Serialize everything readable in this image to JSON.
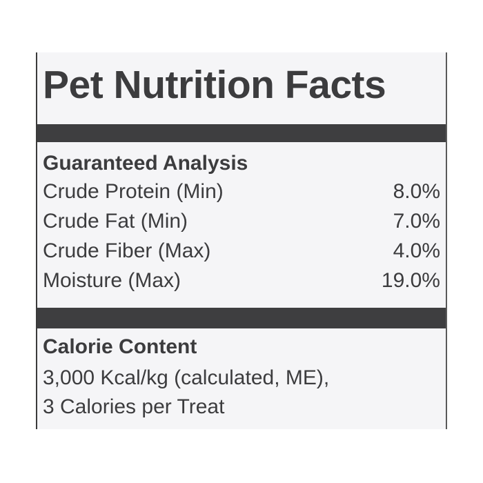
{
  "title": "Pet Nutrition Facts",
  "guaranteed_analysis": {
    "heading": "Guaranteed Analysis",
    "rows": [
      {
        "label": "Crude Protein (Min)",
        "value": "8.0%"
      },
      {
        "label": "Crude Fat (Min)",
        "value": "7.0%"
      },
      {
        "label": "Crude Fiber (Max)",
        "value": "4.0%"
      },
      {
        "label": "Moisture (Max)",
        "value": "19.0%"
      }
    ]
  },
  "calorie_content": {
    "heading": "Calorie Content",
    "lines": [
      "3,000 Kcal/kg (calculated, ME),",
      "3 Calories per Treat"
    ]
  }
}
